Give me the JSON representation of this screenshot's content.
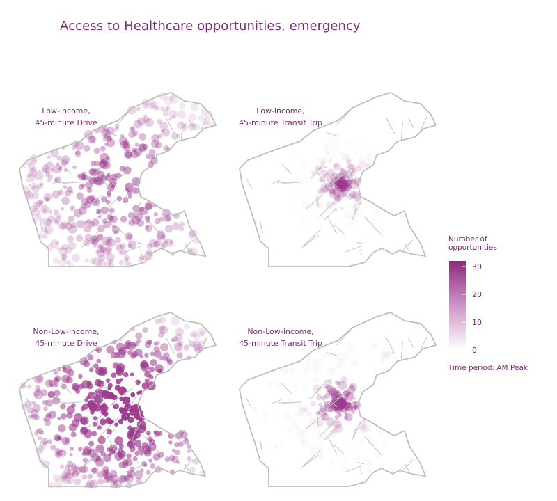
{
  "title": "Access to Healthcare opportunities, emergency",
  "panels": [
    {
      "line1": "Low-income,",
      "line2": "45-minute Drive",
      "intensity": 0.5,
      "spread": 1.0
    },
    {
      "line1": "Low-income,",
      "line2": "45-minute Transit Trip",
      "intensity": 0.35,
      "spread": 0.25
    },
    {
      "line1": "Non-Low-income,",
      "line2": "45-minute Drive",
      "intensity": 1.0,
      "spread": 1.0
    },
    {
      "line1": "Non-Low-income,",
      "line2": "45-minute Transit Trip",
      "intensity": 0.55,
      "spread": 0.35
    }
  ],
  "legend": {
    "title_line1": "Number of",
    "title_line2": "opportunities",
    "ticks": [
      "30",
      "20",
      "10",
      "0"
    ],
    "tick_values": [
      30,
      20,
      10,
      0
    ],
    "max": 32,
    "color_high": "#8b2a7c",
    "color_low": "#ffffff",
    "footer": "Time period: AM Peak"
  },
  "colors": {
    "outline": "#bdbdbd",
    "text": "#7a2a72",
    "fill": "#9c3a8e"
  }
}
